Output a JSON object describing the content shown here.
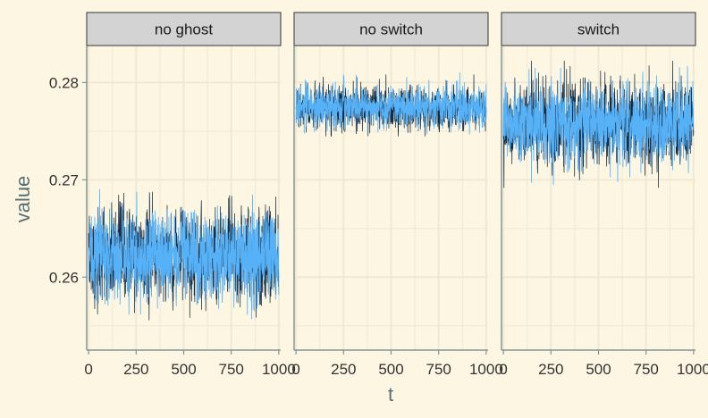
{
  "chart_data": {
    "type": "line",
    "xlabel": "t",
    "ylabel": "value",
    "xlim": [
      -10,
      1010
    ],
    "ylim": [
      0.2525,
      0.2838
    ],
    "x_ticks": [
      0,
      250,
      500,
      750,
      1000
    ],
    "x_tick_labels": [
      "0",
      "250",
      "500",
      "750",
      "1000"
    ],
    "y_ticks": [
      0.26,
      0.27,
      0.28
    ],
    "y_tick_labels": [
      "0.26",
      "0.27",
      "0.28"
    ],
    "grid": true,
    "facets": [
      {
        "label": "no ghost",
        "series": [
          {
            "color": "#132b43",
            "x_range": [
              0,
              1000
            ],
            "mean": 0.2622,
            "sd": 0.0024,
            "min": 0.2545,
            "max": 0.2695
          },
          {
            "color": "#56b1f7",
            "x_range": [
              0,
              1000
            ],
            "mean": 0.2622,
            "sd": 0.0022,
            "min": 0.2535,
            "max": 0.2705
          }
        ]
      },
      {
        "label": "no switch",
        "series": [
          {
            "color": "#132b43",
            "x_range": [
              0,
              1000
            ],
            "mean": 0.2773,
            "sd": 0.0011,
            "min": 0.2745,
            "max": 0.2808
          },
          {
            "color": "#56b1f7",
            "x_range": [
              0,
              1000
            ],
            "mean": 0.2775,
            "sd": 0.001,
            "min": 0.2747,
            "max": 0.281
          }
        ]
      },
      {
        "label": "switch",
        "series": [
          {
            "color": "#132b43",
            "x_range": [
              0,
              1000
            ],
            "mean": 0.2758,
            "sd": 0.0021,
            "min": 0.2692,
            "max": 0.2822
          },
          {
            "color": "#56b1f7",
            "x_range": [
              0,
              1000
            ],
            "mean": 0.2758,
            "sd": 0.002,
            "min": 0.2695,
            "max": 0.282
          }
        ]
      }
    ]
  }
}
